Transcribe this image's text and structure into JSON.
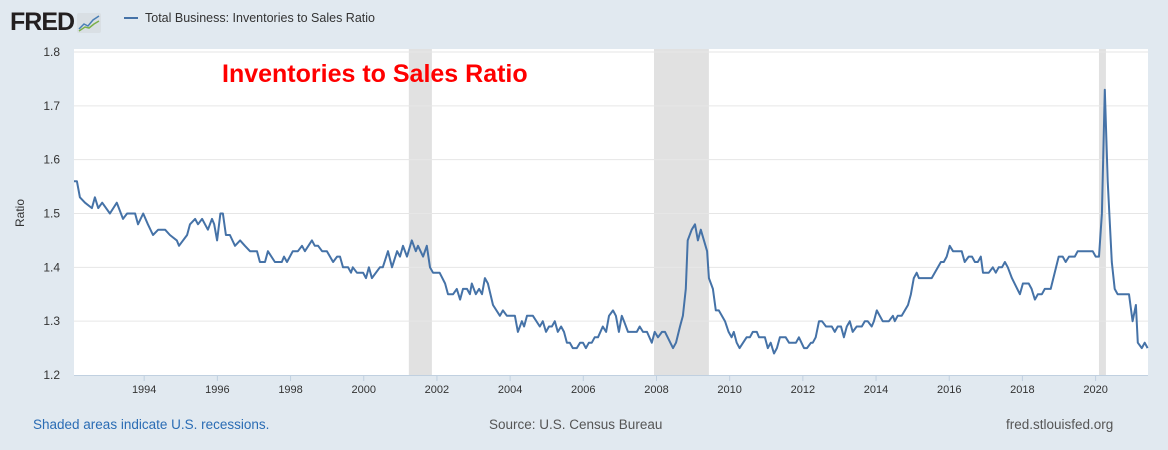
{
  "header": {
    "logo_text": "FRED",
    "legend_label": "Total Business: Inventories to Sales Ratio"
  },
  "footer": {
    "recession_note": "Shaded areas indicate U.S. recessions.",
    "source": "Source: U.S. Census Bureau",
    "site": "fred.stlouisfed.org"
  },
  "colors": {
    "line": "#4572a7",
    "recession": "#e1e1e1",
    "annotation": "#ff0000",
    "background": "#e1e9f0",
    "footer_link": "#2a6cb4"
  },
  "chart_data": {
    "type": "line",
    "title": "Inventories to Sales Ratio",
    "xlabel": "",
    "ylabel": "Ratio",
    "xlim": [
      1992.0,
      2021.35
    ],
    "ylim": [
      1.2,
      1.8
    ],
    "yticks": [
      1.2,
      1.3,
      1.4,
      1.5,
      1.6,
      1.7,
      1.8
    ],
    "ytick_labels": [
      "1.2",
      "1.3",
      "1.4",
      "1.5",
      "1.6",
      "1.7",
      "1.8"
    ],
    "xticks": [
      1994,
      1996,
      1998,
      2000,
      2002,
      2004,
      2006,
      2008,
      2010,
      2012,
      2014,
      2016,
      2018,
      2020
    ],
    "xtick_labels": [
      "1994",
      "1996",
      "1998",
      "2000",
      "2002",
      "2004",
      "2006",
      "2008",
      "2010",
      "2012",
      "2014",
      "2016",
      "2018",
      "2020"
    ],
    "grid": true,
    "legend": "top-left",
    "recessions": [
      [
        2001.15,
        2001.78
      ],
      [
        2007.85,
        2009.35
      ],
      [
        2020.01,
        2020.2
      ]
    ],
    "series": [
      {
        "name": "Total Business: Inventories to Sales Ratio",
        "points": [
          [
            1992.0,
            1.56
          ],
          [
            1992.08,
            1.56
          ],
          [
            1992.16,
            1.53
          ],
          [
            1992.3,
            1.52
          ],
          [
            1992.49,
            1.51
          ],
          [
            1992.57,
            1.53
          ],
          [
            1992.66,
            1.51
          ],
          [
            1992.77,
            1.52
          ],
          [
            1992.98,
            1.5
          ],
          [
            1993.17,
            1.52
          ],
          [
            1993.34,
            1.49
          ],
          [
            1993.45,
            1.5
          ],
          [
            1993.67,
            1.5
          ],
          [
            1993.75,
            1.48
          ],
          [
            1993.89,
            1.5
          ],
          [
            1994.02,
            1.48
          ],
          [
            1994.16,
            1.46
          ],
          [
            1994.3,
            1.47
          ],
          [
            1994.49,
            1.47
          ],
          [
            1994.62,
            1.46
          ],
          [
            1994.81,
            1.45
          ],
          [
            1994.87,
            1.44
          ],
          [
            1995.09,
            1.46
          ],
          [
            1995.17,
            1.48
          ],
          [
            1995.31,
            1.49
          ],
          [
            1995.39,
            1.48
          ],
          [
            1995.5,
            1.49
          ],
          [
            1995.66,
            1.47
          ],
          [
            1995.77,
            1.49
          ],
          [
            1995.83,
            1.48
          ],
          [
            1995.91,
            1.45
          ],
          [
            1996.0,
            1.5
          ],
          [
            1996.07,
            1.5
          ],
          [
            1996.15,
            1.46
          ],
          [
            1996.26,
            1.46
          ],
          [
            1996.4,
            1.44
          ],
          [
            1996.54,
            1.45
          ],
          [
            1996.67,
            1.44
          ],
          [
            1996.81,
            1.43
          ],
          [
            1997.0,
            1.43
          ],
          [
            1997.08,
            1.41
          ],
          [
            1997.22,
            1.41
          ],
          [
            1997.3,
            1.43
          ],
          [
            1997.49,
            1.41
          ],
          [
            1997.68,
            1.41
          ],
          [
            1997.74,
            1.42
          ],
          [
            1997.82,
            1.41
          ],
          [
            1997.98,
            1.43
          ],
          [
            1998.12,
            1.43
          ],
          [
            1998.23,
            1.44
          ],
          [
            1998.31,
            1.43
          ],
          [
            1998.5,
            1.45
          ],
          [
            1998.58,
            1.44
          ],
          [
            1998.67,
            1.44
          ],
          [
            1998.78,
            1.43
          ],
          [
            1998.91,
            1.43
          ],
          [
            1999.08,
            1.41
          ],
          [
            1999.19,
            1.42
          ],
          [
            1999.27,
            1.42
          ],
          [
            1999.35,
            1.4
          ],
          [
            1999.49,
            1.4
          ],
          [
            1999.57,
            1.39
          ],
          [
            1999.62,
            1.4
          ],
          [
            1999.73,
            1.39
          ],
          [
            1999.9,
            1.39
          ],
          [
            1999.98,
            1.38
          ],
          [
            2000.06,
            1.4
          ],
          [
            2000.14,
            1.38
          ],
          [
            2000.36,
            1.4
          ],
          [
            2000.44,
            1.4
          ],
          [
            2000.58,
            1.43
          ],
          [
            2000.69,
            1.4
          ],
          [
            2000.83,
            1.43
          ],
          [
            2000.91,
            1.42
          ],
          [
            2000.99,
            1.44
          ],
          [
            2001.1,
            1.42
          ],
          [
            2001.23,
            1.45
          ],
          [
            2001.34,
            1.43
          ],
          [
            2001.4,
            1.44
          ],
          [
            2001.54,
            1.42
          ],
          [
            2001.64,
            1.44
          ],
          [
            2001.73,
            1.4
          ],
          [
            2001.81,
            1.39
          ],
          [
            2001.99,
            1.39
          ],
          [
            2002.14,
            1.37
          ],
          [
            2002.22,
            1.35
          ],
          [
            2002.36,
            1.35
          ],
          [
            2002.46,
            1.36
          ],
          [
            2002.55,
            1.34
          ],
          [
            2002.63,
            1.36
          ],
          [
            2002.74,
            1.36
          ],
          [
            2002.82,
            1.35
          ],
          [
            2002.87,
            1.37
          ],
          [
            2002.98,
            1.35
          ],
          [
            2003.07,
            1.36
          ],
          [
            2003.15,
            1.35
          ],
          [
            2003.23,
            1.38
          ],
          [
            2003.31,
            1.37
          ],
          [
            2003.45,
            1.33
          ],
          [
            2003.64,
            1.31
          ],
          [
            2003.72,
            1.32
          ],
          [
            2003.83,
            1.31
          ],
          [
            2004.05,
            1.31
          ],
          [
            2004.13,
            1.28
          ],
          [
            2004.24,
            1.3
          ],
          [
            2004.3,
            1.29
          ],
          [
            2004.38,
            1.31
          ],
          [
            2004.54,
            1.31
          ],
          [
            2004.73,
            1.29
          ],
          [
            2004.81,
            1.3
          ],
          [
            2004.9,
            1.28
          ],
          [
            2004.98,
            1.29
          ],
          [
            2005.06,
            1.29
          ],
          [
            2005.14,
            1.3
          ],
          [
            2005.22,
            1.28
          ],
          [
            2005.31,
            1.29
          ],
          [
            2005.39,
            1.28
          ],
          [
            2005.47,
            1.26
          ],
          [
            2005.55,
            1.26
          ],
          [
            2005.63,
            1.25
          ],
          [
            2005.74,
            1.25
          ],
          [
            2005.83,
            1.26
          ],
          [
            2005.91,
            1.26
          ],
          [
            2005.99,
            1.25
          ],
          [
            2006.07,
            1.26
          ],
          [
            2006.15,
            1.26
          ],
          [
            2006.23,
            1.27
          ],
          [
            2006.32,
            1.27
          ],
          [
            2006.45,
            1.29
          ],
          [
            2006.54,
            1.28
          ],
          [
            2006.62,
            1.31
          ],
          [
            2006.73,
            1.32
          ],
          [
            2006.81,
            1.31
          ],
          [
            2006.89,
            1.28
          ],
          [
            2006.97,
            1.31
          ],
          [
            2007.03,
            1.3
          ],
          [
            2007.14,
            1.28
          ],
          [
            2007.38,
            1.28
          ],
          [
            2007.46,
            1.29
          ],
          [
            2007.55,
            1.28
          ],
          [
            2007.66,
            1.28
          ],
          [
            2007.79,
            1.26
          ],
          [
            2007.87,
            1.28
          ],
          [
            2007.96,
            1.27
          ],
          [
            2008.07,
            1.28
          ],
          [
            2008.15,
            1.28
          ],
          [
            2008.37,
            1.25
          ],
          [
            2008.45,
            1.26
          ],
          [
            2008.56,
            1.29
          ],
          [
            2008.64,
            1.31
          ],
          [
            2008.72,
            1.36
          ],
          [
            2008.77,
            1.45
          ],
          [
            2008.88,
            1.47
          ],
          [
            2008.97,
            1.48
          ],
          [
            2009.05,
            1.45
          ],
          [
            2009.13,
            1.47
          ],
          [
            2009.3,
            1.43
          ],
          [
            2009.35,
            1.38
          ],
          [
            2009.46,
            1.36
          ],
          [
            2009.54,
            1.32
          ],
          [
            2009.62,
            1.32
          ],
          [
            2009.79,
            1.3
          ],
          [
            2009.89,
            1.28
          ],
          [
            2009.97,
            1.27
          ],
          [
            2010.03,
            1.28
          ],
          [
            2010.11,
            1.26
          ],
          [
            2010.19,
            1.25
          ],
          [
            2010.38,
            1.27
          ],
          [
            2010.47,
            1.27
          ],
          [
            2010.55,
            1.28
          ],
          [
            2010.66,
            1.28
          ],
          [
            2010.72,
            1.27
          ],
          [
            2010.88,
            1.27
          ],
          [
            2010.96,
            1.25
          ],
          [
            2011.04,
            1.26
          ],
          [
            2011.13,
            1.24
          ],
          [
            2011.21,
            1.25
          ],
          [
            2011.29,
            1.27
          ],
          [
            2011.45,
            1.27
          ],
          [
            2011.54,
            1.26
          ],
          [
            2011.73,
            1.26
          ],
          [
            2011.81,
            1.27
          ],
          [
            2011.95,
            1.25
          ],
          [
            2012.03,
            1.25
          ],
          [
            2012.14,
            1.26
          ],
          [
            2012.19,
            1.26
          ],
          [
            2012.27,
            1.27
          ],
          [
            2012.36,
            1.3
          ],
          [
            2012.44,
            1.3
          ],
          [
            2012.55,
            1.29
          ],
          [
            2012.71,
            1.29
          ],
          [
            2012.79,
            1.28
          ],
          [
            2012.87,
            1.29
          ],
          [
            2012.96,
            1.29
          ],
          [
            2013.04,
            1.27
          ],
          [
            2013.12,
            1.29
          ],
          [
            2013.2,
            1.3
          ],
          [
            2013.28,
            1.28
          ],
          [
            2013.39,
            1.29
          ],
          [
            2013.53,
            1.29
          ],
          [
            2013.61,
            1.3
          ],
          [
            2013.69,
            1.3
          ],
          [
            2013.8,
            1.29
          ],
          [
            2013.86,
            1.3
          ],
          [
            2013.94,
            1.32
          ],
          [
            2014.1,
            1.3
          ],
          [
            2014.27,
            1.3
          ],
          [
            2014.38,
            1.31
          ],
          [
            2014.43,
            1.3
          ],
          [
            2014.51,
            1.31
          ],
          [
            2014.62,
            1.31
          ],
          [
            2014.79,
            1.33
          ],
          [
            2014.87,
            1.35
          ],
          [
            2014.95,
            1.38
          ],
          [
            2015.03,
            1.39
          ],
          [
            2015.09,
            1.38
          ],
          [
            2015.44,
            1.38
          ],
          [
            2015.69,
            1.41
          ],
          [
            2015.77,
            1.41
          ],
          [
            2015.85,
            1.42
          ],
          [
            2015.93,
            1.44
          ],
          [
            2016.02,
            1.43
          ],
          [
            2016.26,
            1.43
          ],
          [
            2016.34,
            1.41
          ],
          [
            2016.45,
            1.42
          ],
          [
            2016.54,
            1.42
          ],
          [
            2016.62,
            1.41
          ],
          [
            2016.7,
            1.41
          ],
          [
            2016.78,
            1.42
          ],
          [
            2016.84,
            1.39
          ],
          [
            2017.0,
            1.39
          ],
          [
            2017.11,
            1.4
          ],
          [
            2017.19,
            1.39
          ],
          [
            2017.27,
            1.4
          ],
          [
            2017.36,
            1.4
          ],
          [
            2017.44,
            1.41
          ],
          [
            2017.52,
            1.4
          ],
          [
            2017.63,
            1.38
          ],
          [
            2017.85,
            1.35
          ],
          [
            2017.93,
            1.37
          ],
          [
            2018.09,
            1.37
          ],
          [
            2018.17,
            1.36
          ],
          [
            2018.26,
            1.34
          ],
          [
            2018.34,
            1.35
          ],
          [
            2018.45,
            1.35
          ],
          [
            2018.53,
            1.36
          ],
          [
            2018.69,
            1.36
          ],
          [
            2018.91,
            1.42
          ],
          [
            2019.02,
            1.42
          ],
          [
            2019.1,
            1.41
          ],
          [
            2019.19,
            1.42
          ],
          [
            2019.35,
            1.42
          ],
          [
            2019.43,
            1.43
          ],
          [
            2019.84,
            1.43
          ],
          [
            2019.92,
            1.42
          ],
          [
            2020.01,
            1.42
          ],
          [
            2020.09,
            1.5
          ],
          [
            2020.17,
            1.73
          ],
          [
            2020.25,
            1.56
          ],
          [
            2020.36,
            1.41
          ],
          [
            2020.44,
            1.36
          ],
          [
            2020.52,
            1.35
          ],
          [
            2020.83,
            1.35
          ],
          [
            2020.93,
            1.3
          ],
          [
            2021.02,
            1.33
          ],
          [
            2021.07,
            1.26
          ],
          [
            2021.18,
            1.25
          ],
          [
            2021.26,
            1.26
          ],
          [
            2021.34,
            1.25
          ]
        ]
      }
    ]
  }
}
